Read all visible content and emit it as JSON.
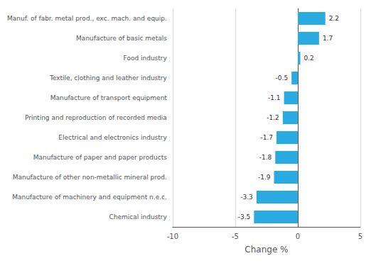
{
  "chart_data": {
    "type": "bar",
    "orientation": "horizontal",
    "categories": [
      "Chemical industry",
      "Manufacture of machinery and equipment n.e.c.",
      "Manufacture of other non-metallic mineral prod.",
      "Manufacture of paper and paper products",
      "Electrical and electronics industry",
      "Printing and reproduction of recorded media",
      "Manufacture of transport equipment",
      "Textile, clothing and leather industry",
      "Food industry",
      "Manufacture of basic metals",
      "Manuf. of fabr. metal prod., exc. mach. and equip."
    ],
    "values": [
      -3.5,
      -3.3,
      -1.9,
      -1.8,
      -1.7,
      -1.2,
      -1.1,
      -0.5,
      0.2,
      1.7,
      2.2
    ],
    "color": "#29abe2",
    "xlabel": "Change %",
    "xlim": [
      -10,
      5
    ],
    "xticks": [
      -10,
      -5,
      0,
      5
    ],
    "grid": true,
    "data_labels": true
  }
}
